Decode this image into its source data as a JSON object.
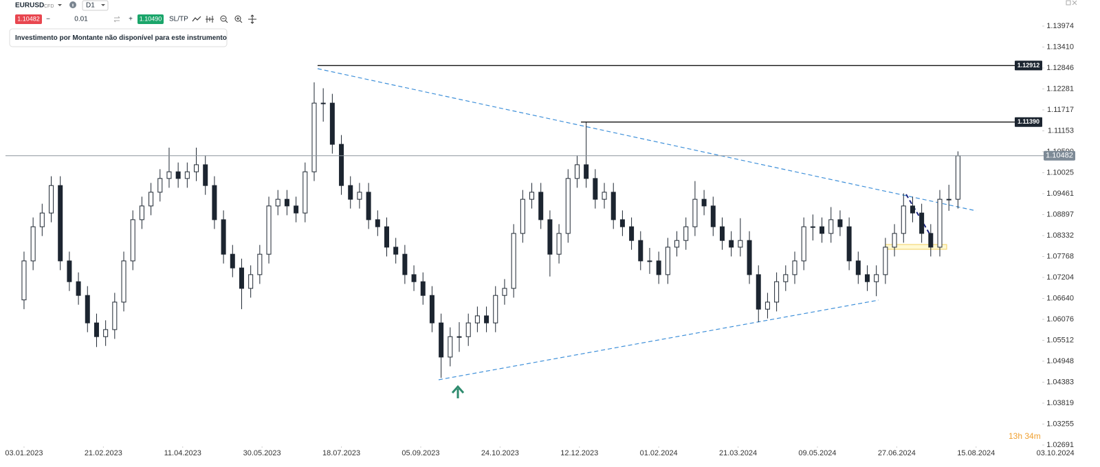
{
  "toolbar": {
    "symbol": "EURUSD",
    "instrument_type": "CFD",
    "timeframe": "D1",
    "bid": "1.10482",
    "minus": "−",
    "amount": "0.01",
    "plus": "+",
    "ask": "1.10490",
    "sltp": "SL/TP",
    "tooltip": "Investimento por Montante não disponível para este instrumento"
  },
  "chart_data": {
    "type": "candlestick",
    "up_color": "#ffffff",
    "down_color": "#1c2530",
    "xlim": [
      -10.6,
      459.5
    ],
    "xticks": [
      {
        "value": 0,
        "label": "03.01.2023"
      },
      {
        "value": 35,
        "label": "21.02.2023"
      },
      {
        "value": 70,
        "label": "11.04.2023"
      },
      {
        "value": 105,
        "label": "30.05.2023"
      },
      {
        "value": 140,
        "label": "18.07.2023"
      },
      {
        "value": 175,
        "label": "05.09.2023"
      },
      {
        "value": 210,
        "label": "24.10.2023"
      },
      {
        "value": 245,
        "label": "12.12.2023"
      },
      {
        "value": 280,
        "label": "01.02.2024"
      },
      {
        "value": 315,
        "label": "21.03.2024"
      },
      {
        "value": 350,
        "label": "09.05.2024"
      },
      {
        "value": 385,
        "label": "27.06.2024"
      },
      {
        "value": 420,
        "label": "15.08.2024"
      },
      {
        "value": 455,
        "label": "03.10.2024"
      }
    ],
    "ylim": [
      1.02654,
      1.14677
    ],
    "yticks": [
      1.13974,
      {
        "value": 1.1341,
        "label": "1.13410"
      },
      1.12846,
      1.12281,
      1.11717,
      1.11153,
      {
        "value": 1.1059,
        "label": "1.10590"
      },
      1.10025,
      1.09461,
      1.08897,
      1.08332,
      1.07768,
      1.07204,
      {
        "value": 1.0664,
        "label": "1.06640"
      },
      1.06076,
      1.05512,
      1.04948,
      1.04383,
      1.03819,
      1.03255,
      1.02691
    ],
    "last_price": 1.10482,
    "levels": [
      {
        "value": 1.12912,
        "from": 129.5
      },
      {
        "value": 1.1139,
        "label": "1.11390",
        "from": 245.7
      }
    ],
    "countdown": "13h 34m",
    "x": [
      0,
      4,
      8,
      12,
      16,
      20,
      24,
      28,
      32,
      36,
      40,
      44,
      48,
      52,
      56,
      60,
      64,
      68,
      72,
      76,
      80,
      84,
      88,
      92,
      96,
      100,
      104,
      108,
      112,
      116,
      120,
      124,
      128,
      132,
      136,
      140,
      144,
      148,
      152,
      156,
      160,
      164,
      168,
      172,
      176,
      180,
      184,
      188,
      192,
      196,
      200,
      204,
      208,
      212,
      216,
      220,
      224,
      228,
      232,
      236,
      240,
      244,
      248,
      252,
      256,
      260,
      264,
      268,
      272,
      276,
      280,
      284,
      288,
      292,
      296,
      300,
      304,
      308,
      312,
      316,
      320,
      324,
      328,
      332,
      336,
      340,
      344,
      348,
      352,
      356,
      360,
      364,
      368,
      372,
      376,
      380,
      384,
      388,
      392,
      396,
      400,
      404,
      408,
      412
    ],
    "open": [
      1.066,
      1.0765,
      1.0857,
      1.0894,
      1.0968,
      1.0765,
      1.0709,
      1.0672,
      1.0598,
      1.0561,
      1.058,
      1.0654,
      1.0765,
      1.0876,
      1.0913,
      1.095,
      1.0987,
      1.1005,
      1.0987,
      1.1005,
      1.1024,
      1.0968,
      1.0876,
      1.0783,
      1.0746,
      1.0691,
      1.0728,
      1.0783,
      1.0913,
      1.0931,
      1.0913,
      1.0894,
      1.1005,
      1.119,
      1.119,
      1.1079,
      1.0968,
      1.0931,
      1.095,
      1.0876,
      1.0857,
      1.0802,
      1.0783,
      1.0728,
      1.0709,
      1.0672,
      1.0598,
      1.0506,
      1.0561,
      1.0561,
      1.0598,
      1.0617,
      1.0598,
      1.0672,
      1.0691,
      1.0839,
      1.0931,
      1.095,
      1.0876,
      1.0783,
      1.0839,
      1.0987,
      1.1024,
      1.0987,
      1.0931,
      1.095,
      1.0876,
      1.0857,
      1.082,
      1.0765,
      1.0765,
      1.0728,
      1.0802,
      1.082,
      1.0857,
      1.0931,
      1.0913,
      1.0857,
      1.082,
      1.0802,
      1.082,
      1.0728,
      1.0635,
      1.0654,
      1.0709,
      1.0728,
      1.0765,
      1.0857,
      1.0857,
      1.0839,
      1.0876,
      1.0857,
      1.0765,
      1.0728,
      1.0709,
      1.0728,
      1.0802,
      1.0839,
      1.0913,
      1.0894,
      1.0839,
      1.0802,
      1.0931,
      1.0931
    ],
    "high": [
      1.079,
      1.0882,
      1.0919,
      1.0993,
      1.0993,
      1.079,
      1.0734,
      1.0697,
      1.0623,
      1.0605,
      1.0679,
      1.079,
      1.0901,
      1.0938,
      1.0975,
      1.1012,
      1.107,
      1.103,
      1.103,
      1.107,
      1.1049,
      1.0993,
      1.0901,
      1.0808,
      1.0771,
      1.0753,
      1.0808,
      1.0938,
      1.0956,
      1.0956,
      1.0938,
      1.103,
      1.1246,
      1.123,
      1.1215,
      1.1104,
      1.0993,
      1.0975,
      1.0975,
      1.0901,
      1.0882,
      1.0827,
      1.0808,
      1.0753,
      1.0734,
      1.0697,
      1.0623,
      1.0586,
      1.06,
      1.0623,
      1.0642,
      1.0642,
      1.0697,
      1.0716,
      1.0864,
      1.0956,
      1.0975,
      1.0975,
      1.0901,
      1.0864,
      1.1012,
      1.1049,
      1.1139,
      1.1012,
      1.0975,
      1.0975,
      1.0901,
      1.0882,
      1.0845,
      1.08,
      1.079,
      1.0827,
      1.0845,
      1.0882,
      1.098,
      1.0956,
      1.0938,
      1.0882,
      1.0845,
      1.088,
      1.0845,
      1.0753,
      1.0679,
      1.0734,
      1.0753,
      1.079,
      1.0882,
      1.089,
      1.0882,
      1.091,
      1.0901,
      1.0882,
      1.079,
      1.0753,
      1.0753,
      1.0827,
      1.0864,
      1.0947,
      1.0938,
      1.0919,
      1.0864,
      1.0956,
      1.097,
      1.106
    ],
    "low": [
      1.0635,
      1.074,
      1.0832,
      1.0869,
      1.074,
      1.0684,
      1.0647,
      1.0573,
      1.0533,
      1.0536,
      1.0555,
      1.0629,
      1.074,
      1.0851,
      1.0888,
      1.0925,
      1.0962,
      1.0962,
      1.0962,
      1.098,
      1.0943,
      1.0851,
      1.0758,
      1.0721,
      1.0635,
      1.0666,
      1.0703,
      1.0758,
      1.0888,
      1.0888,
      1.0869,
      1.0869,
      1.098,
      1.114,
      1.1054,
      1.0943,
      1.0906,
      1.0906,
      1.0851,
      1.0832,
      1.0777,
      1.0758,
      1.0703,
      1.0684,
      1.0647,
      1.0573,
      1.045,
      1.0481,
      1.052,
      1.0536,
      1.0573,
      1.0573,
      1.0573,
      1.0647,
      1.0666,
      1.0814,
      1.0906,
      1.0851,
      1.0723,
      1.0758,
      1.0814,
      1.0962,
      1.0962,
      1.0906,
      1.0906,
      1.0851,
      1.0832,
      1.0795,
      1.074,
      1.073,
      1.0703,
      1.0703,
      1.0777,
      1.0795,
      1.0832,
      1.0888,
      1.0832,
      1.0795,
      1.0777,
      1.0777,
      1.0703,
      1.06,
      1.061,
      1.0629,
      1.0684,
      1.0703,
      1.074,
      1.082,
      1.0814,
      1.0814,
      1.0832,
      1.074,
      1.0703,
      1.0684,
      1.067,
      1.0703,
      1.0777,
      1.0814,
      1.0869,
      1.0814,
      1.0777,
      1.0777,
      1.09,
      1.0906
    ],
    "close": [
      1.0765,
      1.0857,
      1.0894,
      1.0968,
      1.0765,
      1.0709,
      1.0672,
      1.0598,
      1.0561,
      1.058,
      1.0654,
      1.0765,
      1.0876,
      1.0913,
      1.095,
      1.0987,
      1.1005,
      1.0987,
      1.1005,
      1.1024,
      1.0968,
      1.0876,
      1.0783,
      1.0746,
      1.0691,
      1.0728,
      1.0783,
      1.0913,
      1.0931,
      1.0913,
      1.0894,
      1.1005,
      1.119,
      1.119,
      1.1079,
      1.0968,
      1.0931,
      1.095,
      1.0876,
      1.0857,
      1.0802,
      1.0783,
      1.0728,
      1.0709,
      1.0672,
      1.0598,
      1.0506,
      1.0561,
      1.0561,
      1.0598,
      1.0617,
      1.0598,
      1.0672,
      1.0691,
      1.0839,
      1.0931,
      1.095,
      1.0876,
      1.0783,
      1.0839,
      1.0987,
      1.1024,
      1.0987,
      1.0931,
      1.095,
      1.0876,
      1.0857,
      1.082,
      1.0765,
      1.0765,
      1.0728,
      1.0802,
      1.082,
      1.0857,
      1.0931,
      1.0913,
      1.0857,
      1.082,
      1.0802,
      1.082,
      1.0728,
      1.0635,
      1.0654,
      1.0709,
      1.0728,
      1.0765,
      1.0857,
      1.0857,
      1.0839,
      1.0876,
      1.0857,
      1.0765,
      1.0728,
      1.0709,
      1.0728,
      1.0802,
      1.0839,
      1.0913,
      1.0894,
      1.0839,
      1.0802,
      1.0931,
      1.0931,
      1.1048
    ]
  }
}
